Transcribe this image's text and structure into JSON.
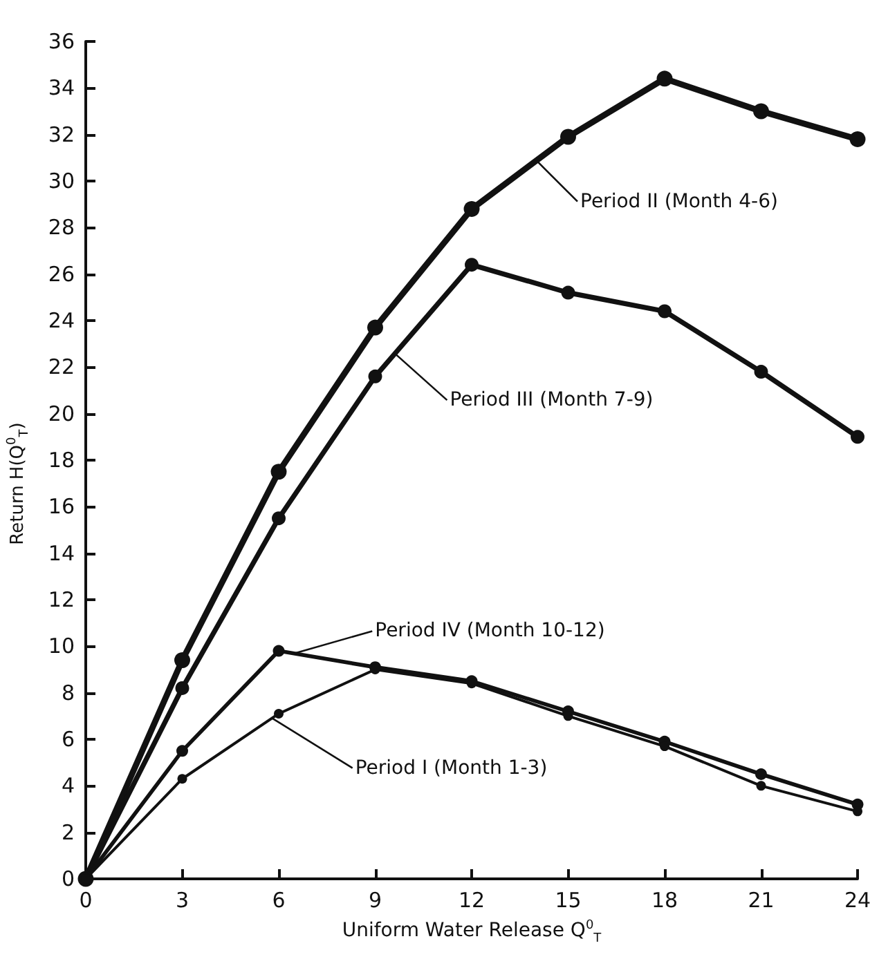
{
  "chart_data": {
    "type": "line",
    "xlabel": "Uniform Water Release Q$^{0}$$_{T}$",
    "ylabel": "Return H(Q$^{0}$$_{T}$)",
    "x": [
      0,
      3,
      6,
      9,
      12,
      15,
      18,
      21,
      24
    ],
    "series": [
      {
        "color": "#111111",
        "values": [
          0,
          9.4,
          17.5,
          23.7,
          28.8,
          31.9,
          34.4,
          33.0,
          31.8
        ]
      },
      {
        "color": "#111111",
        "values": [
          0,
          8.2,
          15.5,
          21.6,
          26.4,
          25.2,
          24.4,
          21.8,
          19.0
        ]
      },
      {
        "color": "#111111",
        "values": [
          0,
          5.5,
          9.8,
          9.1,
          8.5,
          7.2,
          5.9,
          4.5,
          3.2
        ]
      },
      {
        "color": "#111111",
        "values": [
          0,
          4.3,
          7.1,
          9.0,
          8.4,
          7.0,
          5.7,
          4.0,
          2.9
        ]
      }
    ],
    "annotations": [
      {
        "text": "Period II (Month 4-6)",
        "x": 14,
        "y": 30.9
      },
      {
        "text": "Period III (Month 7-9)",
        "x": 9.6,
        "y": 22.6
      },
      {
        "text": "Period IV (Month 10-12)",
        "x": 6.5,
        "y": 9.7
      },
      {
        "text": "Period I (Month 1-3)",
        "x": 5.8,
        "y": 6.9
      }
    ],
    "xlim": [
      0,
      24
    ],
    "xticks": [
      0,
      3,
      6,
      9,
      12,
      15,
      18,
      21,
      24
    ],
    "ylim": [
      0,
      36
    ],
    "yticks": [
      0,
      2,
      4,
      6,
      8,
      10,
      12,
      14,
      16,
      18,
      20,
      22,
      24,
      26,
      28,
      30,
      32,
      34,
      36
    ],
    "grid": false,
    "marker": "circle",
    "line_style": "solid"
  }
}
